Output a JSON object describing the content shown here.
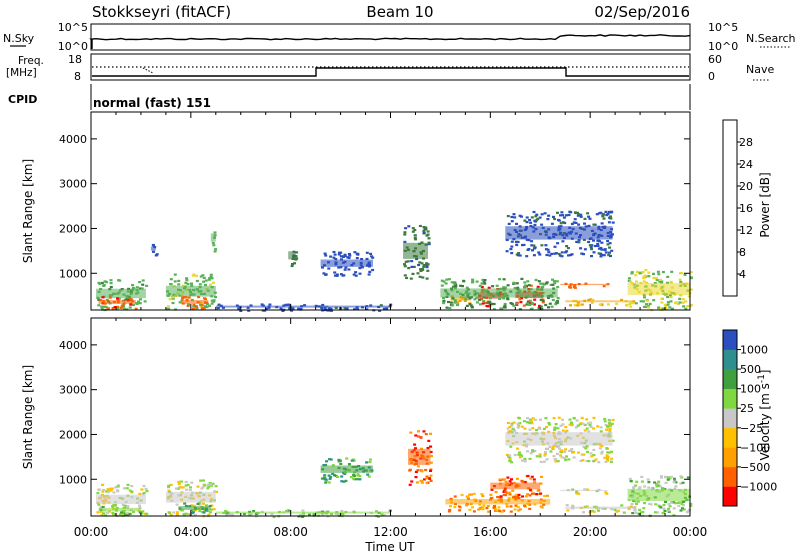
{
  "header": {
    "station": "Stokkseyri (fitACF)",
    "beam": "Beam 10",
    "date": "02/Sep/2016"
  },
  "noise_panel": {
    "left_label": "N.Sky",
    "right_label": "N.Search",
    "left_ticks": [
      "10^5",
      "10^0"
    ],
    "right_ticks": [
      "10^5",
      "10^0"
    ]
  },
  "freq_panel": {
    "left_label_1": "Freq.",
    "left_label_2": "[MHz]",
    "right_label": "Nave",
    "left_ticks": [
      "18",
      "8"
    ],
    "right_ticks": [
      "60",
      "0"
    ]
  },
  "cpid": {
    "label": "CPID",
    "value": "normal (fast) 151"
  },
  "colors": {
    "power": [
      "#0000ff",
      "#2c4fbf",
      "#3d7a3d",
      "#58b058",
      "#e8d830",
      "#f0a000",
      "#ff6000",
      "#ff0000"
    ],
    "velocity": [
      "#ff0000",
      "#ff6000",
      "#ffa000",
      "#ffc000",
      "#c8c8c8",
      "#7fd840",
      "#40a040",
      "#2f8f8f",
      "#2c4fbf"
    ]
  },
  "chart_data": [
    {
      "type": "heatmap",
      "name": "power",
      "ylabel": "Slant Range [km]",
      "yticks": [
        1000,
        2000,
        3000,
        4000
      ],
      "ylim": [
        180,
        4600
      ],
      "xlim": [
        0,
        24
      ],
      "colorbar_label": "Power [dB]",
      "colorbar_ticks": [
        4,
        8,
        12,
        16,
        20,
        24,
        28
      ],
      "colorbar_range": [
        0,
        32
      ],
      "regions": [
        {
          "t0": 0.2,
          "t1": 2.2,
          "r0": 200,
          "r1": 900,
          "v": 13
        },
        {
          "t0": 0.3,
          "t1": 1.8,
          "r0": 220,
          "r1": 500,
          "v": 27
        },
        {
          "t0": 3.0,
          "t1": 5.0,
          "r0": 200,
          "r1": 1000,
          "v": 15
        },
        {
          "t0": 3.6,
          "t1": 4.7,
          "r0": 220,
          "r1": 500,
          "v": 26
        },
        {
          "t0": 4.8,
          "t1": 5.0,
          "r0": 1500,
          "r1": 2100,
          "v": 14
        },
        {
          "t0": 2.4,
          "t1": 2.6,
          "r0": 1400,
          "r1": 1700,
          "v": 6
        },
        {
          "t0": 5.0,
          "t1": 9.5,
          "r0": 180,
          "r1": 330,
          "v": 6
        },
        {
          "t0": 7.9,
          "t1": 8.2,
          "r0": 1100,
          "r1": 1700,
          "v": 9
        },
        {
          "t0": 9.2,
          "t1": 11.3,
          "r0": 950,
          "r1": 1500,
          "v": 6
        },
        {
          "t0": 12.5,
          "t1": 13.5,
          "r0": 900,
          "r1": 2100,
          "v": 9
        },
        {
          "t0": 14.4,
          "t1": 15.2,
          "r0": 300,
          "r1": 550,
          "v": 22
        },
        {
          "t0": 15.5,
          "t1": 16.6,
          "r0": 280,
          "r1": 720,
          "v": 28
        },
        {
          "t0": 17.0,
          "t1": 18.1,
          "r0": 280,
          "r1": 750,
          "v": 28
        },
        {
          "t0": 14.0,
          "t1": 18.7,
          "r0": 220,
          "r1": 900,
          "v": 12
        },
        {
          "t0": 16.6,
          "t1": 20.9,
          "r0": 1400,
          "r1": 2400,
          "v": 7
        },
        {
          "t0": 18.8,
          "t1": 20.7,
          "r0": 700,
          "r1": 800,
          "v": 26
        },
        {
          "t0": 19.0,
          "t1": 21.8,
          "r0": 300,
          "r1": 450,
          "v": 20
        },
        {
          "t0": 21.5,
          "t1": 24.0,
          "r0": 200,
          "r1": 1100,
          "v": 16
        },
        {
          "t0": 9.0,
          "t1": 12.0,
          "r0": 180,
          "r1": 330,
          "v": 7
        }
      ]
    },
    {
      "type": "heatmap",
      "name": "velocity",
      "ylabel": "Slant Range [km]",
      "yticks": [
        1000,
        2000,
        3000,
        4000
      ],
      "ylim": [
        180,
        4600
      ],
      "xlim": [
        0,
        24
      ],
      "xticks": [
        "00:00",
        "04:00",
        "08:00",
        "12:00",
        "16:00",
        "20:00",
        "00:00"
      ],
      "xlabel": "Time UT",
      "colorbar_label": "Velocity [m s",
      "colorbar_exp": "-1",
      "colorbar_label_end": "]",
      "colorbar_ticks": [
        "1000",
        "500",
        "100",
        "25",
        "−25",
        "−100",
        "−500",
        "−1000"
      ],
      "regions": [
        {
          "t0": 0.2,
          "t1": 2.2,
          "r0": 200,
          "r1": 900,
          "v": 4
        },
        {
          "t0": 0.3,
          "t1": 2.0,
          "r0": 200,
          "r1": 450,
          "v": 5
        },
        {
          "t0": 3.0,
          "t1": 5.0,
          "r0": 200,
          "r1": 1000,
          "v": 4
        },
        {
          "t0": 3.5,
          "t1": 4.8,
          "r0": 220,
          "r1": 500,
          "v": 6
        },
        {
          "t0": 5.0,
          "t1": 9.5,
          "r0": 180,
          "r1": 330,
          "v": 5
        },
        {
          "t0": 9.2,
          "t1": 11.3,
          "r0": 950,
          "r1": 1500,
          "v": 6
        },
        {
          "t0": 12.7,
          "t1": 13.6,
          "r0": 900,
          "r1": 2100,
          "v": 1
        },
        {
          "t0": 14.2,
          "t1": 18.4,
          "r0": 300,
          "r1": 700,
          "v": 2
        },
        {
          "t0": 16.0,
          "t1": 18.0,
          "r0": 600,
          "r1": 1100,
          "v": 1
        },
        {
          "t0": 16.6,
          "t1": 20.9,
          "r0": 1400,
          "r1": 2400,
          "v": 4
        },
        {
          "t0": 18.8,
          "t1": 20.7,
          "r0": 700,
          "r1": 800,
          "v": 4
        },
        {
          "t0": 19.0,
          "t1": 21.8,
          "r0": 280,
          "r1": 450,
          "v": 4
        },
        {
          "t0": 21.5,
          "t1": 24.0,
          "r0": 200,
          "r1": 1100,
          "v": 5
        },
        {
          "t0": 9.0,
          "t1": 12.0,
          "r0": 180,
          "r1": 330,
          "v": 5
        }
      ]
    }
  ]
}
